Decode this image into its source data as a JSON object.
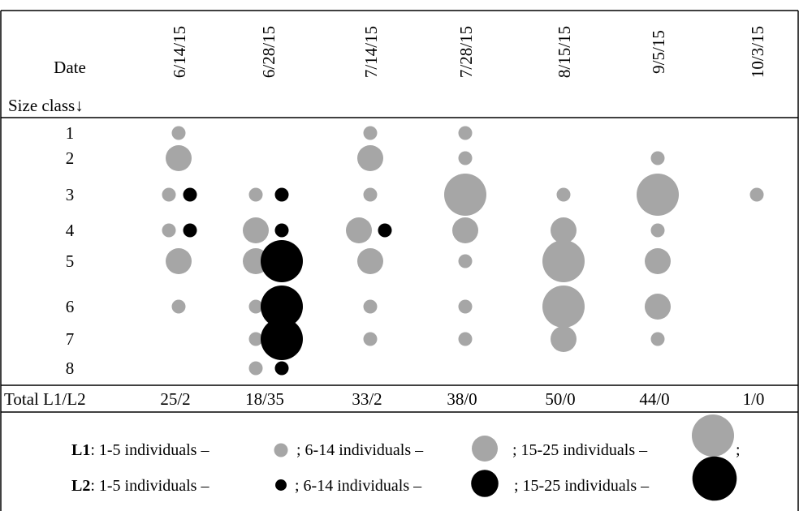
{
  "chart_data": {
    "type": "scatter",
    "header": {
      "date_label": "Date",
      "size_class_label": "Size class↓"
    },
    "dates": [
      "6/14/15",
      "6/28/15",
      "7/14/15",
      "7/28/15",
      "8/15/15",
      "9/5/15",
      "10/3/15"
    ],
    "size_classes": [
      "1",
      "2",
      "3",
      "4",
      "5",
      "6",
      "7",
      "8"
    ],
    "series": [
      {
        "name": "L1",
        "color": "#a6a6a6",
        "abundance_classes": [
          [
            1,
            0,
            1,
            1,
            0,
            0,
            0
          ],
          [
            2,
            0,
            2,
            1,
            0,
            1,
            0
          ],
          [
            1,
            1,
            1,
            3,
            1,
            3,
            1
          ],
          [
            1,
            2,
            2,
            2,
            2,
            1,
            0
          ],
          [
            2,
            2,
            2,
            1,
            3,
            2,
            0
          ],
          [
            1,
            1,
            1,
            1,
            3,
            2,
            0
          ],
          [
            0,
            1,
            1,
            1,
            2,
            1,
            0
          ],
          [
            0,
            1,
            0,
            0,
            0,
            0,
            0
          ]
        ]
      },
      {
        "name": "L2",
        "color": "#000000",
        "abundance_classes": [
          [
            0,
            0,
            0,
            0,
            0,
            0,
            0
          ],
          [
            0,
            0,
            0,
            0,
            0,
            0,
            0
          ],
          [
            1,
            1,
            0,
            0,
            0,
            0,
            0
          ],
          [
            1,
            1,
            1,
            0,
            0,
            0,
            0
          ],
          [
            0,
            3,
            0,
            0,
            0,
            0,
            0
          ],
          [
            0,
            3,
            0,
            0,
            0,
            0,
            0
          ],
          [
            0,
            3,
            0,
            0,
            0,
            0,
            0
          ],
          [
            0,
            1,
            0,
            0,
            0,
            0,
            0
          ]
        ]
      }
    ],
    "totals": {
      "label": "Total L1/L2",
      "values": [
        "25/2",
        "18/35",
        "33/2",
        "38/0",
        "50/0",
        "44/0",
        "1/0"
      ]
    },
    "legend": {
      "l1": {
        "name": "L1",
        "color": "#a6a6a6",
        "prefix": ": 1-5 individuals – ",
        "mid": "; 6-14 individuals – ",
        "suffix": "; 15-25 individuals – ",
        "end": ";"
      },
      "l2": {
        "name": "L2",
        "color": "#000000",
        "prefix": ": 1-5 individuals – ",
        "mid": "; 6-14 individuals – ",
        "suffix": "; 15-25 individuals – ",
        "end": ""
      }
    }
  }
}
